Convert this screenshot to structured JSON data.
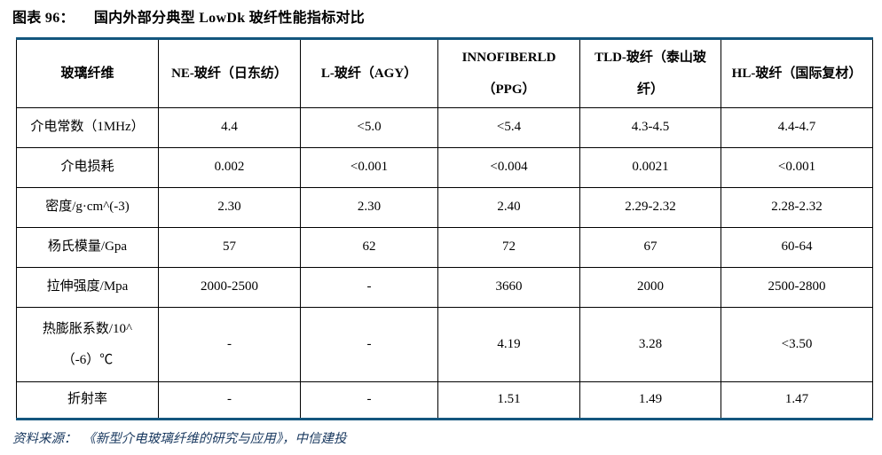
{
  "title": {
    "label": "图表 96：",
    "text": "国内外部分典型 LowDk 玻纤性能指标对比"
  },
  "table": {
    "columns": [
      "玻璃纤维",
      "NE-玻纤（日东纺）",
      "L-玻纤（AGY）",
      "INNOFIBERLD （PPG）",
      "TLD-玻纤（泰山玻纤）",
      "HL-玻纤（国际复材）"
    ],
    "rows": [
      {
        "label": "介电常数（1MHz）",
        "values": [
          "4.4",
          "<5.0",
          "<5.4",
          "4.3-4.5",
          "4.4-4.7"
        ]
      },
      {
        "label": "介电损耗",
        "values": [
          "0.002",
          "<0.001",
          "<0.004",
          "0.0021",
          "<0.001"
        ]
      },
      {
        "label": "密度/g·cm^(-3)",
        "values": [
          "2.30",
          "2.30",
          "2.40",
          "2.29-2.32",
          "2.28-2.32"
        ]
      },
      {
        "label": "杨氏模量/Gpa",
        "values": [
          "57",
          "62",
          "72",
          "67",
          "60-64"
        ]
      },
      {
        "label": "拉伸强度/Mpa",
        "values": [
          "2000-2500",
          "-",
          "3660",
          "2000",
          "2500-2800"
        ]
      },
      {
        "label": "热膨胀系数/10^ （-6）℃",
        "values": [
          "-",
          "-",
          "4.19",
          "3.28",
          "<3.50"
        ]
      },
      {
        "label": "折射率",
        "values": [
          "-",
          "-",
          "1.51",
          "1.49",
          "1.47"
        ]
      }
    ]
  },
  "footer": {
    "source_label": "资料来源：",
    "source_text": "《新型介电玻璃纤维的研究与应用》，中信建投"
  },
  "colors": {
    "accent_rule": "#13567E",
    "source_text": "#17375E",
    "table_border": "#000000",
    "text": "#000000"
  }
}
